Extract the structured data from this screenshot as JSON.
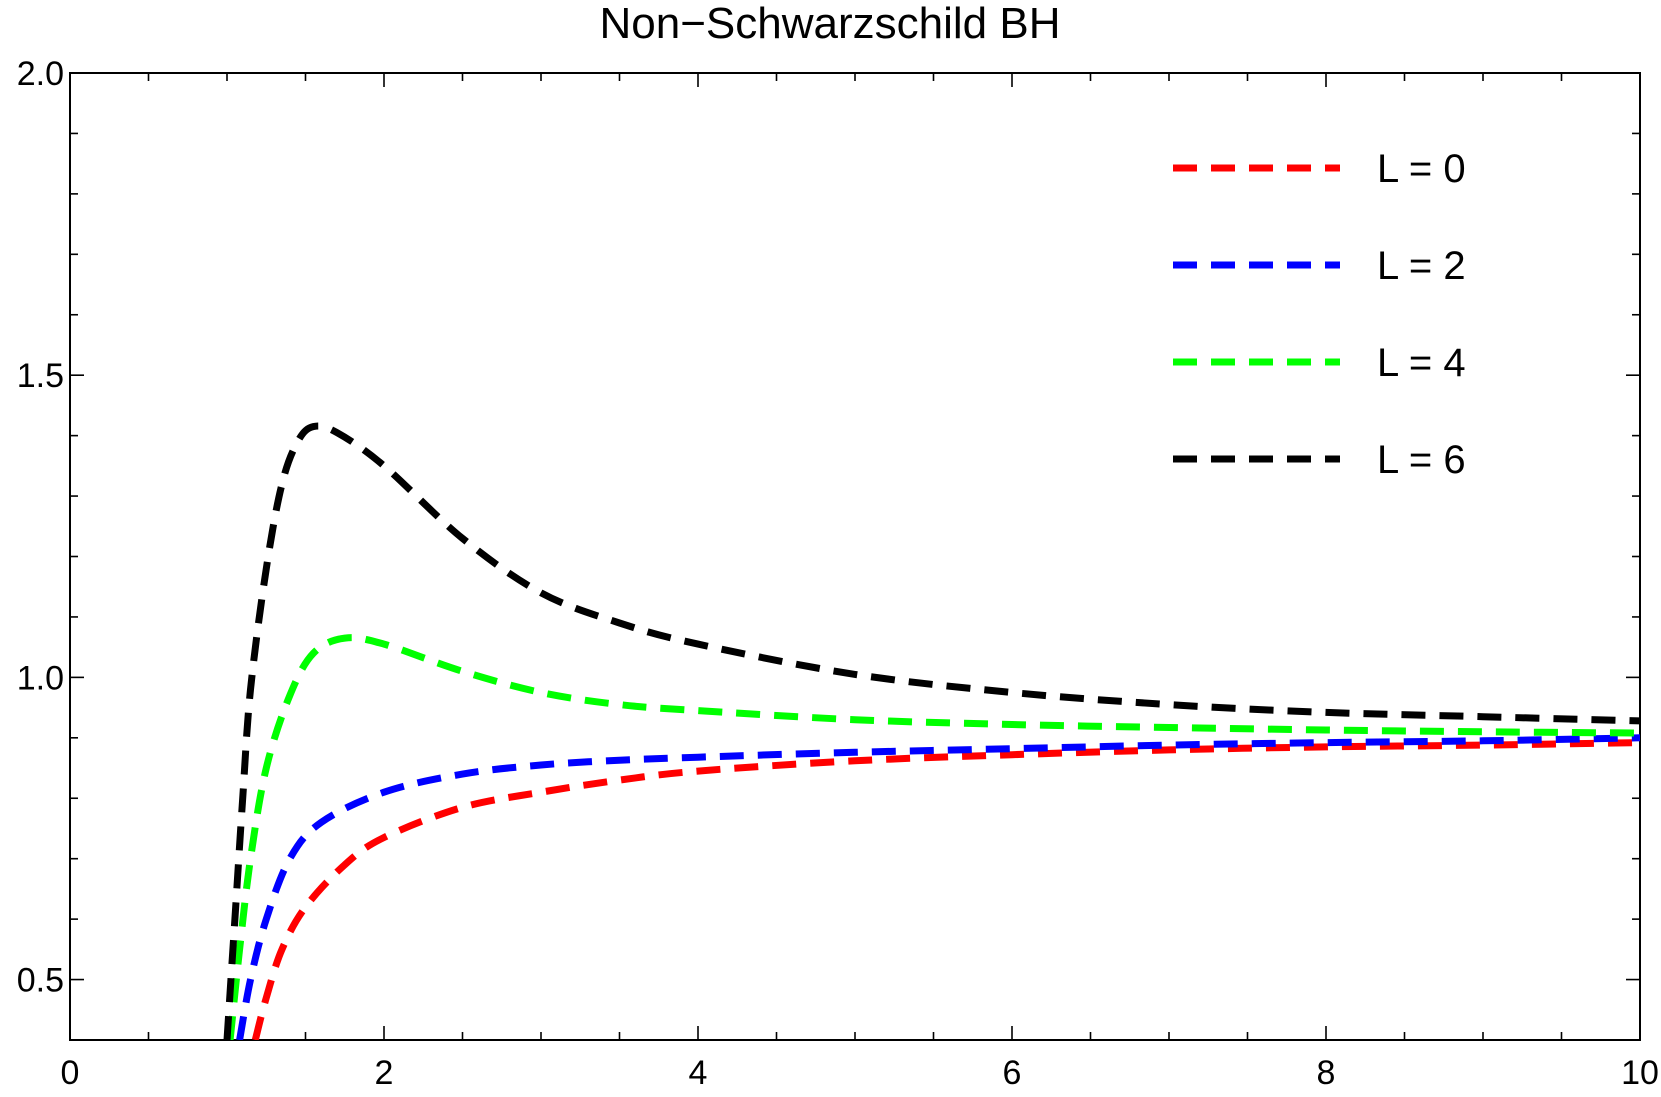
{
  "chart_data": {
    "type": "line",
    "title": "Non−Schwarzschild BH",
    "xlabel": "",
    "ylabel": "",
    "xlim": [
      0,
      10
    ],
    "ylim": [
      0.4,
      2.0
    ],
    "x_ticks": [
      0,
      2,
      4,
      6,
      8,
      10
    ],
    "x_tick_labels": [
      "0",
      "2",
      "4",
      "6",
      "8",
      "10"
    ],
    "x_minor_step": 0.5,
    "y_ticks": [
      0.5,
      1.0,
      1.5,
      2.0
    ],
    "y_tick_labels": [
      "0.5",
      "1.0",
      "1.5",
      "2.0"
    ],
    "y_minor_step": 0.1,
    "grid": false,
    "legend_position": "top-right",
    "line_style": "dashed",
    "series": [
      {
        "name": "L = 0",
        "color": "#ff0000",
        "points": [
          [
            1.18,
            0.4
          ],
          [
            1.25,
            0.47
          ],
          [
            1.35,
            0.55
          ],
          [
            1.5,
            0.62
          ],
          [
            1.75,
            0.69
          ],
          [
            2.0,
            0.735
          ],
          [
            2.5,
            0.785
          ],
          [
            3.0,
            0.81
          ],
          [
            3.5,
            0.83
          ],
          [
            4.0,
            0.845
          ],
          [
            5.0,
            0.862
          ],
          [
            6.0,
            0.872
          ],
          [
            7.0,
            0.88
          ],
          [
            8.0,
            0.885
          ],
          [
            9.0,
            0.888
          ],
          [
            10.0,
            0.892
          ]
        ]
      },
      {
        "name": "L = 2",
        "color": "#0000ff",
        "points": [
          [
            1.08,
            0.4
          ],
          [
            1.15,
            0.5
          ],
          [
            1.25,
            0.6
          ],
          [
            1.4,
            0.7
          ],
          [
            1.6,
            0.76
          ],
          [
            2.0,
            0.81
          ],
          [
            2.5,
            0.84
          ],
          [
            3.0,
            0.855
          ],
          [
            3.5,
            0.863
          ],
          [
            4.0,
            0.868
          ],
          [
            5.0,
            0.876
          ],
          [
            6.0,
            0.882
          ],
          [
            7.0,
            0.888
          ],
          [
            8.0,
            0.892
          ],
          [
            9.0,
            0.895
          ],
          [
            10.0,
            0.9
          ]
        ]
      },
      {
        "name": "L = 4",
        "color": "#00ff00",
        "points": [
          [
            1.02,
            0.4
          ],
          [
            1.08,
            0.55
          ],
          [
            1.15,
            0.7
          ],
          [
            1.25,
            0.85
          ],
          [
            1.4,
            0.97
          ],
          [
            1.55,
            1.04
          ],
          [
            1.75,
            1.065
          ],
          [
            2.0,
            1.055
          ],
          [
            2.5,
            1.01
          ],
          [
            3.0,
            0.975
          ],
          [
            3.5,
            0.955
          ],
          [
            4.0,
            0.945
          ],
          [
            5.0,
            0.93
          ],
          [
            6.0,
            0.922
          ],
          [
            7.0,
            0.917
          ],
          [
            8.0,
            0.913
          ],
          [
            9.0,
            0.91
          ],
          [
            10.0,
            0.908
          ]
        ]
      },
      {
        "name": "L = 6",
        "color": "#000000",
        "points": [
          [
            1.0,
            0.4
          ],
          [
            1.05,
            0.6
          ],
          [
            1.1,
            0.8
          ],
          [
            1.15,
            0.98
          ],
          [
            1.25,
            1.18
          ],
          [
            1.35,
            1.32
          ],
          [
            1.45,
            1.39
          ],
          [
            1.55,
            1.415
          ],
          [
            1.7,
            1.405
          ],
          [
            2.0,
            1.35
          ],
          [
            2.5,
            1.23
          ],
          [
            3.0,
            1.14
          ],
          [
            3.5,
            1.09
          ],
          [
            4.0,
            1.055
          ],
          [
            5.0,
            1.005
          ],
          [
            6.0,
            0.975
          ],
          [
            7.0,
            0.955
          ],
          [
            8.0,
            0.942
          ],
          [
            9.0,
            0.935
          ],
          [
            10.0,
            0.928
          ]
        ]
      }
    ]
  }
}
